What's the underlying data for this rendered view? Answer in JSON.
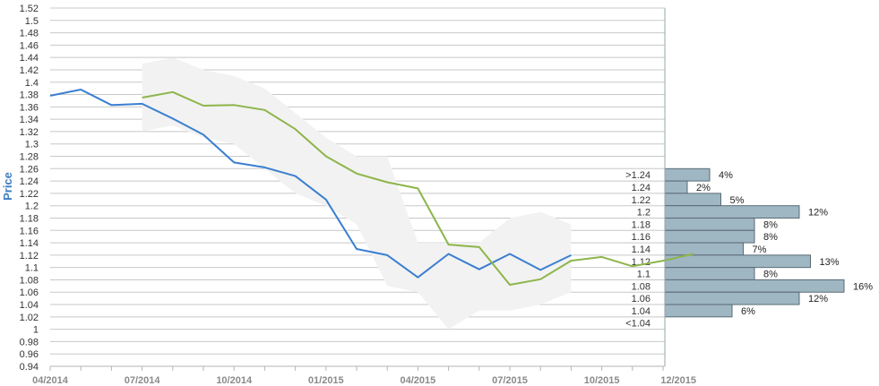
{
  "chart_data": {
    "type": "line",
    "ylabel": "Price",
    "ylim": [
      0.94,
      1.52
    ],
    "yticks": [
      "0.94",
      "0.96",
      "0.98",
      "1",
      "1.02",
      "1.04",
      "1.06",
      "1.08",
      "1.1",
      "1.12",
      "1.14",
      "1.16",
      "1.18",
      "1.2",
      "1.22",
      "1.24",
      "1.26",
      "1.28",
      "1.3",
      "1.32",
      "1.34",
      "1.36",
      "1.38",
      "1.4",
      "1.42",
      "1.44",
      "1.46",
      "1.48",
      "1.5",
      "1.52"
    ],
    "xticks": [
      "04/2014",
      "07/2014",
      "10/2014",
      "01/2015",
      "04/2015",
      "07/2015",
      "10/2015",
      "12/2015"
    ],
    "grid": true,
    "colors": {
      "actual": "#3a7fcf",
      "forecast": "#8db54a",
      "band": "#f2f2f2",
      "bars": "#9fb6c3",
      "bar_border": "#5a6b75"
    },
    "series": [
      {
        "values": [
          1.378,
          1.388,
          1.363,
          1.365,
          1.341,
          1.315,
          1.27,
          1.262,
          1.248,
          1.21,
          1.13,
          1.12,
          1.084,
          1.122,
          1.097,
          1.122,
          1.096,
          1.12
        ]
      },
      {
        "values": [
          1.375,
          1.384,
          1.362,
          1.363,
          1.355,
          1.324,
          1.28,
          1.252,
          1.238,
          1.228,
          1.137,
          1.133,
          1.072,
          1.081,
          1.111,
          1.117,
          1.102,
          1.111,
          1.122
        ]
      }
    ],
    "forecast_band": {
      "upper": [
        1.43,
        1.44,
        1.42,
        1.41,
        1.39,
        1.35,
        1.31,
        1.28,
        1.28,
        1.14,
        1.14,
        1.14,
        1.18,
        1.19,
        1.17
      ],
      "lower": [
        1.32,
        1.33,
        1.31,
        1.3,
        1.26,
        1.22,
        1.2,
        1.17,
        1.07,
        1.06,
        1.0,
        1.03,
        1.03,
        1.04,
        1.06
      ]
    },
    "distribution": [
      {
        "label": ">1.24",
        "price": 1.25,
        "percent": 4,
        "pct_label": "4%"
      },
      {
        "label": "1.24",
        "price": 1.23,
        "percent": 2,
        "pct_label": "2%"
      },
      {
        "label": "1.22",
        "price": 1.21,
        "percent": 5,
        "pct_label": "5%"
      },
      {
        "label": "1.2",
        "price": 1.19,
        "percent": 12,
        "pct_label": "12%"
      },
      {
        "label": "1.18",
        "price": 1.17,
        "percent": 8,
        "pct_label": "8%"
      },
      {
        "label": "1.16",
        "price": 1.15,
        "percent": 8,
        "pct_label": "8%"
      },
      {
        "label": "1.14",
        "price": 1.13,
        "percent": 7,
        "pct_label": "7%"
      },
      {
        "label": "1.12",
        "price": 1.11,
        "percent": 13,
        "pct_label": "13%"
      },
      {
        "label": "1.1",
        "price": 1.09,
        "percent": 8,
        "pct_label": "8%"
      },
      {
        "label": "1.08",
        "price": 1.07,
        "percent": 16,
        "pct_label": "16%"
      },
      {
        "label": "1.06",
        "price": 1.05,
        "percent": 12,
        "pct_label": "12%"
      },
      {
        "label": "1.04",
        "price": 1.03,
        "percent": 6,
        "pct_label": "6%"
      },
      {
        "label": "<1.04",
        "price": 1.01,
        "percent": null,
        "pct_label": ""
      }
    ]
  }
}
